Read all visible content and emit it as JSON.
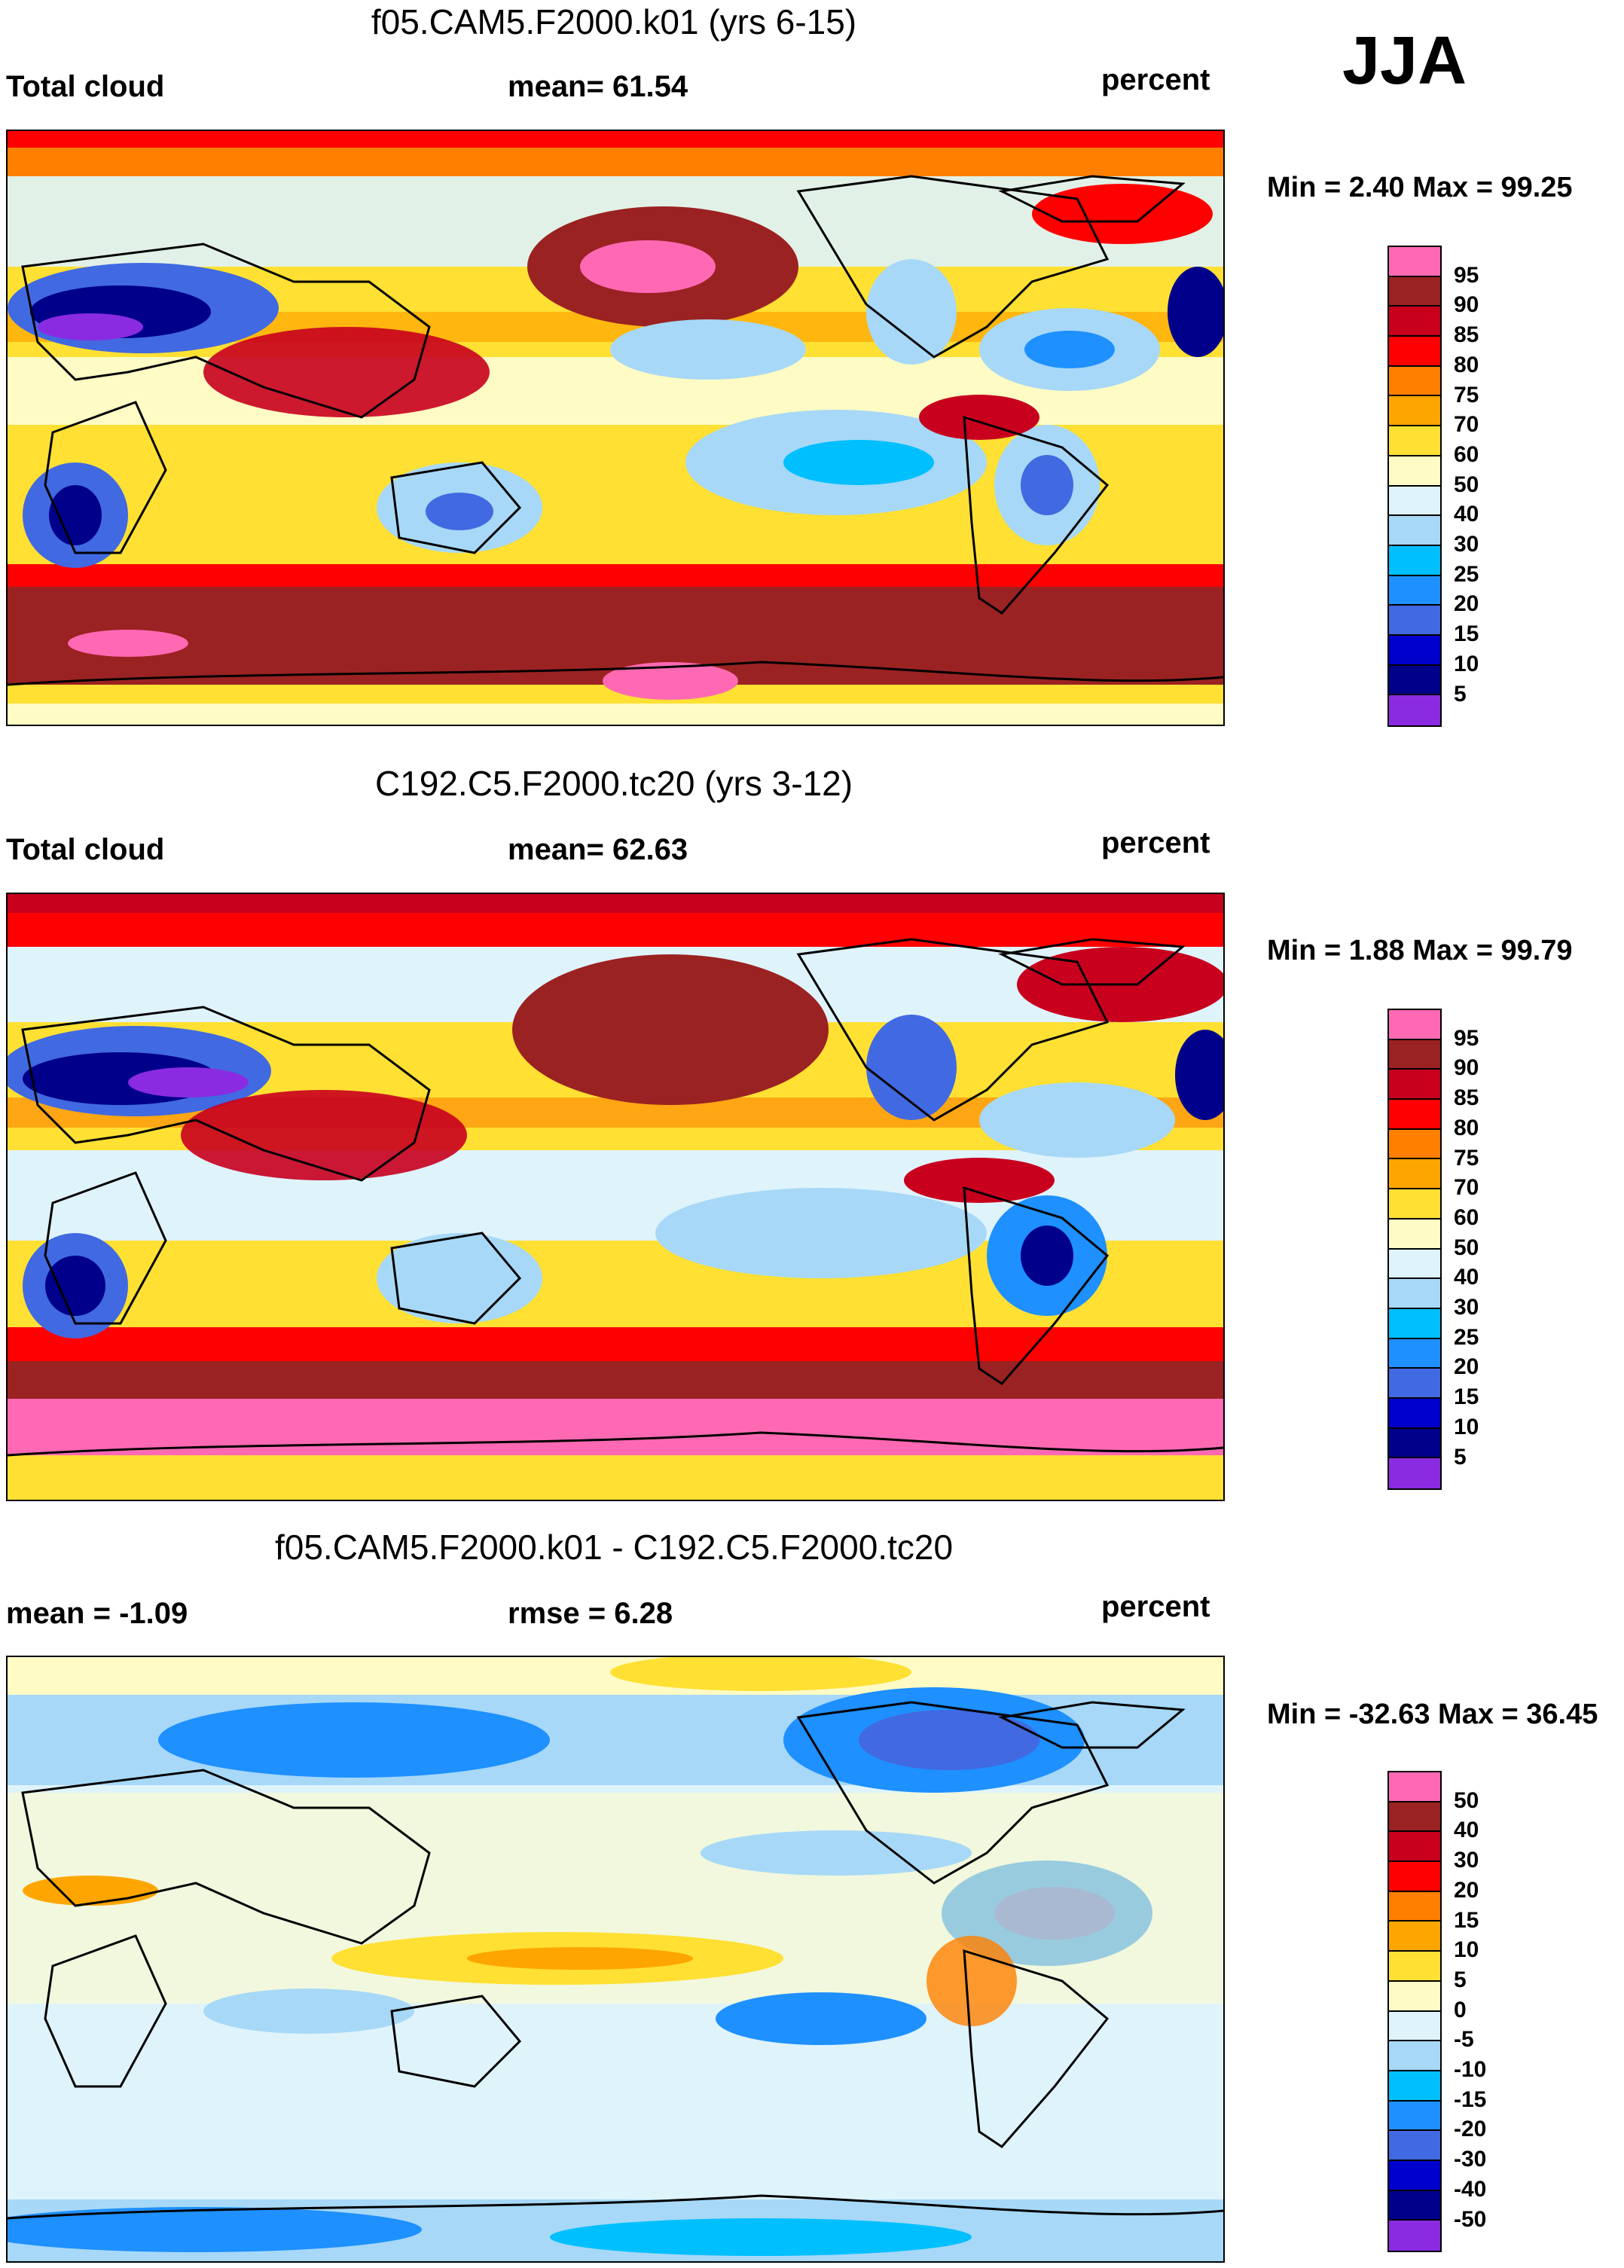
{
  "season": "JJA",
  "colors": {
    "abs": [
      "#8a2be2",
      "#00008b",
      "#0000cd",
      "#4169e1",
      "#1e90ff",
      "#00bfff",
      "#a7d8f7",
      "#dff3fb",
      "#fffbc4",
      "#ffe033",
      "#ffa500",
      "#ff7f00",
      "#ff0000",
      "#c8001e",
      "#9b2222",
      "#ff69b4"
    ],
    "diff": [
      "#8a2be2",
      "#00008b",
      "#0000cd",
      "#4169e1",
      "#1e90ff",
      "#00bfff",
      "#a7d8f7",
      "#dff3fb",
      "#fffbc4",
      "#ffe033",
      "#ffa500",
      "#ff7f00",
      "#ff0000",
      "#c8001e",
      "#9b2222",
      "#ff69b4"
    ]
  },
  "panels": [
    {
      "id": "p1",
      "title": "f05.CAM5.F2000.k01 (yrs 6-15)",
      "left_label": "Total cloud",
      "center_label": "mean=  61.54",
      "right_label": "percent",
      "minmax": "Min =   2.40 Max =  99.25",
      "ticks": [
        "95",
        "90",
        "85",
        "80",
        "75",
        "70",
        "60",
        "50",
        "40",
        "30",
        "25",
        "20",
        "15",
        "10",
        "5"
      ],
      "kind": "abs"
    },
    {
      "id": "p2",
      "title": "C192.C5.F2000.tc20 (yrs 3-12)",
      "left_label": "Total cloud",
      "center_label": "mean=  62.63",
      "right_label": "percent",
      "minmax": "Min =   1.88 Max =  99.79",
      "ticks": [
        "95",
        "90",
        "85",
        "80",
        "75",
        "70",
        "60",
        "50",
        "40",
        "30",
        "25",
        "20",
        "15",
        "10",
        "5"
      ],
      "kind": "abs"
    },
    {
      "id": "p3",
      "title": "f05.CAM5.F2000.k01 - C192.C5.F2000.tc20",
      "left_label": "mean =  -1.09",
      "center_label": "rmse =   6.28",
      "right_label": "percent",
      "minmax": "Min = -32.63 Max =  36.45",
      "ticks": [
        "50",
        "40",
        "30",
        "20",
        "15",
        "10",
        "5",
        "0",
        "-5",
        "-10",
        "-15",
        "-20",
        "-30",
        "-40",
        "-50"
      ],
      "kind": "diff"
    }
  ]
}
